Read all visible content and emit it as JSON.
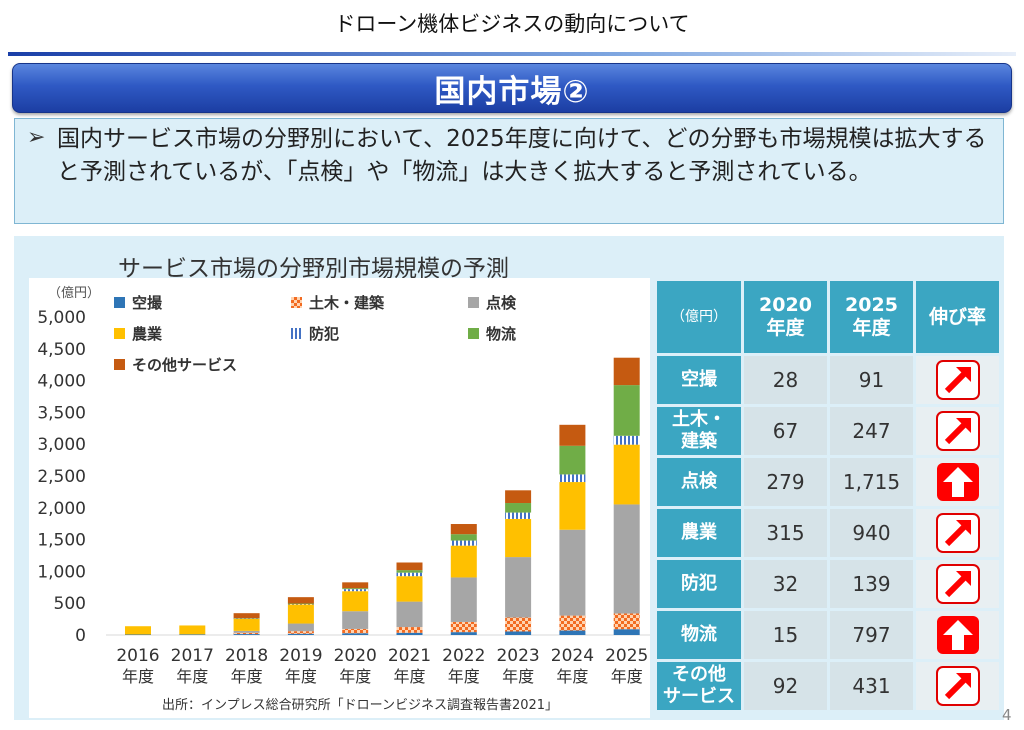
{
  "page": {
    "header_title": "ドローン機体ビジネスの動向について",
    "banner_title": "国内市場②",
    "summary_bullet": "➢",
    "summary_text": "国内サービス市場の分野別において、2025年度に向けて、どの分野も市場規模は拡大すると予測されているが、「点検」や「物流」は大きく拡大すると予測されている。",
    "chart_title": "サービス市場の分野別市場規模の予測",
    "source": "出所：インプレス総合研究所「ドローンビジネス調査報告書2021」",
    "page_number": "4"
  },
  "chart_data": {
    "type": "bar",
    "stacked": true,
    "y_unit": "（億円）",
    "ylim": [
      0,
      5000
    ],
    "yticks": [
      "0",
      "500",
      "1,000",
      "1,500",
      "2,000",
      "2,500",
      "3,000",
      "3,500",
      "4,000",
      "4,500",
      "5,000"
    ],
    "categories": [
      {
        "year": "2016",
        "suffix": "年度"
      },
      {
        "year": "2017",
        "suffix": "年度"
      },
      {
        "year": "2018",
        "suffix": "年度"
      },
      {
        "year": "2019",
        "suffix": "年度"
      },
      {
        "year": "2020",
        "suffix": "年度"
      },
      {
        "year": "2021",
        "suffix": "年度"
      },
      {
        "year": "2022",
        "suffix": "年度"
      },
      {
        "year": "2023",
        "suffix": "年度"
      },
      {
        "year": "2024",
        "suffix": "年度"
      },
      {
        "year": "2025",
        "suffix": "年度"
      }
    ],
    "series": [
      {
        "name": "空撮",
        "color": "#2e75b6",
        "pattern": "solid",
        "values": [
          8,
          10,
          15,
          20,
          28,
          35,
          45,
          55,
          70,
          91
        ]
      },
      {
        "name": "土木・建築",
        "color": "#f26b21",
        "pattern": "checker",
        "values": [
          0,
          0,
          20,
          40,
          67,
          90,
          160,
          220,
          235,
          247
        ]
      },
      {
        "name": "点検",
        "color": "#a6a6a6",
        "pattern": "solid",
        "values": [
          0,
          0,
          30,
          120,
          279,
          400,
          700,
          950,
          1350,
          1715
        ]
      },
      {
        "name": "農業",
        "color": "#ffc000",
        "pattern": "solid",
        "values": [
          130,
          140,
          190,
          300,
          315,
          400,
          500,
          600,
          750,
          940
        ]
      },
      {
        "name": "防犯",
        "color": "#4472c4",
        "pattern": "stripes",
        "values": [
          0,
          0,
          5,
          10,
          32,
          55,
          80,
          100,
          120,
          139
        ]
      },
      {
        "name": "物流",
        "color": "#70ad47",
        "pattern": "solid",
        "values": [
          0,
          0,
          3,
          5,
          15,
          40,
          100,
          150,
          450,
          797
        ]
      },
      {
        "name": "その他サービス",
        "color": "#c55a11",
        "pattern": "solid",
        "values": [
          0,
          0,
          80,
          100,
          92,
          120,
          160,
          200,
          330,
          431
        ]
      }
    ]
  },
  "table": {
    "header": {
      "unit": "（億円）",
      "col2020": "2020\n年度",
      "col2025": "2025\n年度",
      "growth": "伸び率"
    },
    "rows": [
      {
        "label": "空撮",
        "v2020": "28",
        "v2025": "91",
        "growth": "diagonal-arrow-icon"
      },
      {
        "label": "土木・\n建築",
        "v2020": "67",
        "v2025": "247",
        "growth": "diagonal-arrow-icon"
      },
      {
        "label": "点検",
        "v2020": "279",
        "v2025": "1,715",
        "growth": "up-arrow-icon"
      },
      {
        "label": "農業",
        "v2020": "315",
        "v2025": "940",
        "growth": "diagonal-arrow-icon"
      },
      {
        "label": "防犯",
        "v2020": "32",
        "v2025": "139",
        "growth": "diagonal-arrow-icon"
      },
      {
        "label": "物流",
        "v2020": "15",
        "v2025": "797",
        "growth": "up-arrow-icon"
      },
      {
        "label": "その他\nサービス",
        "v2020": "92",
        "v2025": "431",
        "growth": "diagonal-arrow-icon"
      }
    ]
  }
}
